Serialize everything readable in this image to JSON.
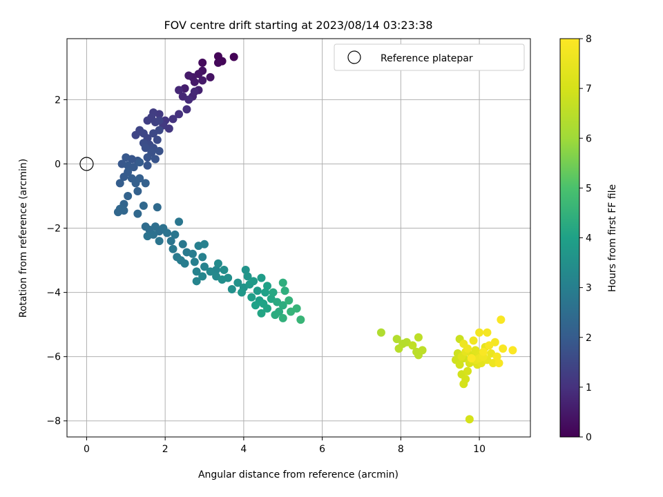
{
  "chart_data": {
    "type": "scatter",
    "title": "FOV centre drift starting at 2023/08/14 03:23:38",
    "xlabel": "Angular distance from reference (arcmin)",
    "ylabel": "Rotation from reference (arcmin)",
    "xlim": [
      -0.5,
      11.3
    ],
    "ylim": [
      -8.5,
      3.9
    ],
    "xticks": [
      0,
      2,
      4,
      6,
      8,
      10
    ],
    "yticks": [
      -8,
      -6,
      -4,
      -2,
      0,
      2
    ],
    "grid": true,
    "legend": {
      "placement": "top-right",
      "entries": [
        "Reference platepar"
      ]
    },
    "reference_point": {
      "x": 0,
      "y": 0
    },
    "colorbar": {
      "label": "Hours from first FF file",
      "range": [
        0,
        8
      ],
      "ticks": [
        0,
        1,
        2,
        3,
        4,
        5,
        6,
        7,
        8
      ],
      "colormap": "viridis"
    },
    "series": [
      {
        "points": [
          [
            3.75,
            3.33,
            0.05
          ],
          [
            3.35,
            3.35,
            0.1
          ],
          [
            3.45,
            3.2,
            0.1
          ],
          [
            3.35,
            3.15,
            0.15
          ],
          [
            2.95,
            3.15,
            0.2
          ],
          [
            3.15,
            2.7,
            0.35
          ],
          [
            2.95,
            2.9,
            0.35
          ],
          [
            2.85,
            2.8,
            0.4
          ],
          [
            2.7,
            2.7,
            0.45
          ],
          [
            2.95,
            2.6,
            0.5
          ],
          [
            2.75,
            2.55,
            0.5
          ],
          [
            2.6,
            2.75,
            0.5
          ],
          [
            2.5,
            2.35,
            0.6
          ],
          [
            2.85,
            2.3,
            0.65
          ],
          [
            2.7,
            2.1,
            0.75
          ],
          [
            2.45,
            2.1,
            0.8
          ],
          [
            2.35,
            2.3,
            0.8
          ],
          [
            2.75,
            2.25,
            0.8
          ],
          [
            2.6,
            2.0,
            0.85
          ],
          [
            2.55,
            1.7,
            0.95
          ],
          [
            2.35,
            1.55,
            1.0
          ],
          [
            2.2,
            1.4,
            1.05
          ],
          [
            2.0,
            1.35,
            1.1
          ],
          [
            2.1,
            1.1,
            1.15
          ],
          [
            1.95,
            1.2,
            1.2
          ],
          [
            1.85,
            1.55,
            1.2
          ],
          [
            1.7,
            1.6,
            1.25
          ],
          [
            1.65,
            1.45,
            1.3
          ],
          [
            1.55,
            1.35,
            1.3
          ],
          [
            1.75,
            1.3,
            1.35
          ],
          [
            1.85,
            1.35,
            1.4
          ],
          [
            1.35,
            1.05,
            1.45
          ],
          [
            1.25,
            0.9,
            1.45
          ],
          [
            1.45,
            0.95,
            1.5
          ],
          [
            1.55,
            0.8,
            1.5
          ],
          [
            1.7,
            0.95,
            1.55
          ],
          [
            1.85,
            1.05,
            1.55
          ],
          [
            1.8,
            0.75,
            1.6
          ],
          [
            1.6,
            0.6,
            1.6
          ],
          [
            1.45,
            0.65,
            1.65
          ],
          [
            1.5,
            0.5,
            1.7
          ],
          [
            1.7,
            0.5,
            1.7
          ],
          [
            1.85,
            0.4,
            1.75
          ],
          [
            1.65,
            0.35,
            1.75
          ],
          [
            1.75,
            0.15,
            1.8
          ],
          [
            1.55,
            0.2,
            1.8
          ],
          [
            1.55,
            -0.05,
            1.85
          ],
          [
            1.3,
            0.1,
            1.85
          ],
          [
            1.15,
            0.15,
            1.85
          ],
          [
            1.0,
            0.2,
            1.9
          ],
          [
            0.9,
            0.0,
            1.9
          ],
          [
            1.05,
            -0.05,
            1.95
          ],
          [
            1.2,
            -0.1,
            1.95
          ],
          [
            1.35,
            0.05,
            2.0
          ],
          [
            1.05,
            -0.25,
            2.0
          ],
          [
            0.95,
            -0.4,
            2.0
          ],
          [
            0.85,
            -0.6,
            2.05
          ],
          [
            1.15,
            -0.45,
            2.05
          ],
          [
            1.25,
            -0.6,
            2.1
          ],
          [
            1.35,
            -0.45,
            2.1
          ],
          [
            1.5,
            -0.6,
            2.15
          ],
          [
            1.3,
            -0.85,
            2.15
          ],
          [
            1.05,
            -1.0,
            2.2
          ],
          [
            0.95,
            -1.25,
            2.25
          ],
          [
            0.85,
            -1.4,
            2.3
          ],
          [
            0.8,
            -1.5,
            2.3
          ],
          [
            0.95,
            -1.45,
            2.3
          ],
          [
            1.45,
            -1.3,
            2.35
          ],
          [
            1.3,
            -1.55,
            2.35
          ],
          [
            1.8,
            -1.35,
            2.4
          ],
          [
            1.5,
            -1.95,
            2.45
          ],
          [
            1.6,
            -2.05,
            2.5
          ],
          [
            1.75,
            -1.95,
            2.55
          ],
          [
            1.85,
            -2.1,
            2.55
          ],
          [
            1.95,
            -2.0,
            2.6
          ],
          [
            1.7,
            -2.2,
            2.6
          ],
          [
            1.55,
            -2.25,
            2.65
          ],
          [
            2.05,
            -2.15,
            2.65
          ],
          [
            1.85,
            -2.4,
            2.7
          ],
          [
            2.15,
            -2.4,
            2.7
          ],
          [
            2.35,
            -1.8,
            2.75
          ],
          [
            2.25,
            -2.2,
            2.75
          ],
          [
            2.2,
            -2.65,
            2.8
          ],
          [
            2.45,
            -2.5,
            2.8
          ],
          [
            2.3,
            -2.9,
            2.85
          ],
          [
            2.55,
            -2.75,
            2.85
          ],
          [
            2.4,
            -3.0,
            2.9
          ],
          [
            2.7,
            -2.8,
            2.9
          ],
          [
            2.5,
            -3.1,
            2.95
          ],
          [
            2.75,
            -3.05,
            3.0
          ],
          [
            2.85,
            -2.55,
            3.0
          ],
          [
            3.0,
            -2.5,
            3.05
          ],
          [
            2.95,
            -2.9,
            3.05
          ],
          [
            3.0,
            -3.2,
            3.1
          ],
          [
            2.8,
            -3.35,
            3.1
          ],
          [
            2.8,
            -3.65,
            3.15
          ],
          [
            2.95,
            -3.5,
            3.2
          ],
          [
            3.15,
            -3.35,
            3.25
          ],
          [
            3.3,
            -3.5,
            3.3
          ],
          [
            3.35,
            -3.1,
            3.35
          ],
          [
            3.5,
            -3.3,
            3.4
          ],
          [
            3.6,
            -3.55,
            3.45
          ],
          [
            3.45,
            -3.6,
            3.45
          ],
          [
            3.7,
            -3.9,
            3.5
          ],
          [
            3.85,
            -3.7,
            3.55
          ],
          [
            4.0,
            -3.85,
            3.6
          ],
          [
            4.05,
            -3.3,
            3.6
          ],
          [
            4.1,
            -3.5,
            3.65
          ],
          [
            3.95,
            -4.0,
            3.7
          ],
          [
            4.15,
            -3.75,
            3.75
          ],
          [
            4.25,
            -3.65,
            3.8
          ],
          [
            4.35,
            -3.95,
            3.8
          ],
          [
            4.45,
            -3.55,
            3.85
          ],
          [
            4.2,
            -4.15,
            3.9
          ],
          [
            4.4,
            -4.25,
            3.95
          ],
          [
            4.3,
            -4.4,
            4.0
          ],
          [
            4.55,
            -4.0,
            4.0
          ],
          [
            4.5,
            -4.35,
            4.05
          ],
          [
            4.45,
            -4.65,
            4.1
          ],
          [
            4.6,
            -4.5,
            4.1
          ],
          [
            4.7,
            -4.2,
            4.15
          ],
          [
            4.75,
            -4.0,
            4.2
          ],
          [
            4.85,
            -4.3,
            4.25
          ],
          [
            4.9,
            -4.6,
            4.3
          ],
          [
            4.8,
            -4.7,
            4.3
          ],
          [
            5.0,
            -4.4,
            4.35
          ],
          [
            5.0,
            -3.7,
            4.4
          ],
          [
            5.0,
            -4.8,
            4.45
          ],
          [
            5.15,
            -4.25,
            4.5
          ],
          [
            5.2,
            -4.6,
            4.55
          ],
          [
            5.35,
            -4.5,
            4.55
          ],
          [
            5.45,
            -4.85,
            4.6
          ],
          [
            5.05,
            -3.95,
            4.4
          ],
          [
            4.6,
            -3.8,
            4.0
          ],
          [
            3.3,
            -3.3,
            3.2
          ],
          [
            7.5,
            -5.25,
            6.3
          ],
          [
            7.9,
            -5.45,
            6.35
          ],
          [
            8.05,
            -5.6,
            6.4
          ],
          [
            8.15,
            -5.55,
            6.4
          ],
          [
            7.95,
            -5.75,
            6.45
          ],
          [
            8.4,
            -5.85,
            6.5
          ],
          [
            8.45,
            -5.95,
            6.5
          ],
          [
            8.45,
            -5.4,
            6.55
          ],
          [
            8.55,
            -5.8,
            6.55
          ],
          [
            8.3,
            -5.65,
            6.6
          ],
          [
            9.5,
            -5.45,
            6.8
          ],
          [
            9.45,
            -5.9,
            6.85
          ],
          [
            9.6,
            -6.05,
            6.9
          ],
          [
            9.4,
            -6.1,
            6.9
          ],
          [
            9.5,
            -6.25,
            6.95
          ],
          [
            9.55,
            -6.55,
            6.95
          ],
          [
            9.6,
            -6.85,
            7.0
          ],
          [
            9.65,
            -6.7,
            7.0
          ],
          [
            9.7,
            -6.45,
            7.05
          ],
          [
            9.75,
            -6.2,
            7.1
          ],
          [
            9.8,
            -5.95,
            7.15
          ],
          [
            9.85,
            -6.15,
            7.2
          ],
          [
            9.95,
            -6.25,
            7.25
          ],
          [
            9.9,
            -5.8,
            7.3
          ],
          [
            10.0,
            -5.95,
            7.35
          ],
          [
            10.05,
            -6.2,
            7.4
          ],
          [
            10.15,
            -5.7,
            7.45
          ],
          [
            10.2,
            -6.1,
            7.5
          ],
          [
            10.3,
            -5.9,
            7.55
          ],
          [
            10.35,
            -6.2,
            7.6
          ],
          [
            9.6,
            -5.6,
            7.6
          ],
          [
            9.7,
            -5.75,
            7.65
          ],
          [
            9.85,
            -5.5,
            7.7
          ],
          [
            10.0,
            -5.25,
            7.75
          ],
          [
            10.2,
            -5.25,
            7.8
          ],
          [
            10.4,
            -5.55,
            7.8
          ],
          [
            10.45,
            -6.0,
            7.85
          ],
          [
            10.5,
            -6.2,
            7.85
          ],
          [
            10.55,
            -4.85,
            7.9
          ],
          [
            10.6,
            -5.75,
            7.9
          ],
          [
            10.85,
            -5.8,
            7.95
          ],
          [
            9.8,
            -6.05,
            7.95
          ],
          [
            10.1,
            -5.85,
            7.9
          ],
          [
            10.25,
            -5.65,
            7.85
          ],
          [
            9.75,
            -7.95,
            7.0
          ],
          [
            9.55,
            -6.0,
            7.2
          ],
          [
            9.65,
            -5.85,
            7.4
          ],
          [
            9.9,
            -6.1,
            7.5
          ],
          [
            10.0,
            -6.05,
            7.6
          ],
          [
            10.1,
            -6.0,
            7.7
          ]
        ]
      }
    ]
  }
}
